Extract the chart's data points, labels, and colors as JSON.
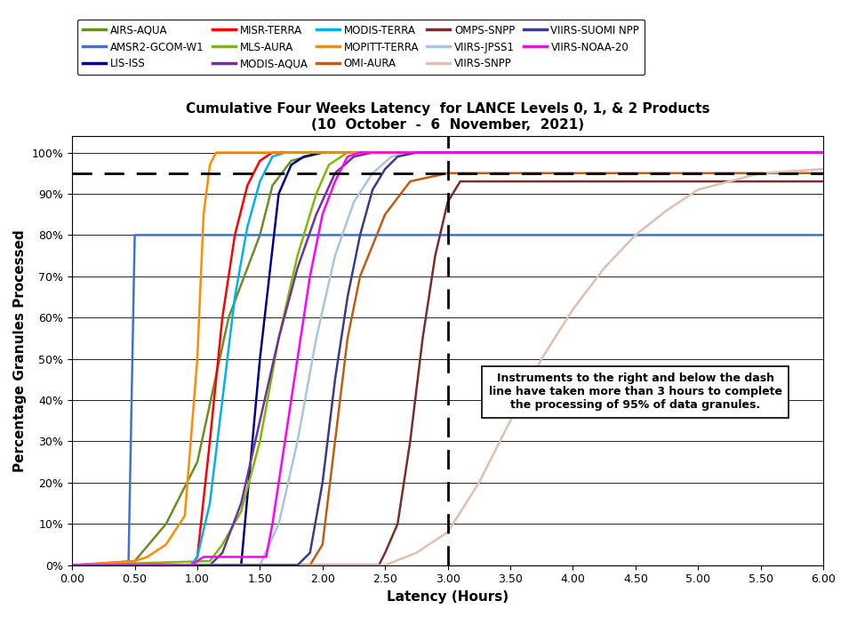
{
  "title_line1": "Cumulative Four Weeks Latency  for LANCE Levels 0, 1, & 2 Products",
  "title_line2": "(10  October  -  6  November,  2021)",
  "xlabel": "Latency (Hours)",
  "ylabel": "Percentage Granules Processed",
  "xlim": [
    0.0,
    6.0
  ],
  "ylim": [
    0.0,
    1.04
  ],
  "annotation_text": "Instruments to the right and below the dash\nline have taken more than 3 hours to complete\nthe processing of 95% of data granules.",
  "series": {
    "AIRS-AQUA": {
      "color": "#6B8E23",
      "points": [
        [
          0.0,
          0.0
        ],
        [
          0.5,
          0.01
        ],
        [
          0.75,
          0.1
        ],
        [
          1.0,
          0.25
        ],
        [
          1.25,
          0.6
        ],
        [
          1.5,
          0.8
        ],
        [
          1.6,
          0.92
        ],
        [
          1.75,
          0.98
        ],
        [
          2.0,
          1.0
        ],
        [
          6.0,
          1.0
        ]
      ]
    },
    "AMSR2-GCOM-W1": {
      "color": "#4472C4",
      "points": [
        [
          0.0,
          0.0
        ],
        [
          0.45,
          0.0
        ],
        [
          0.5,
          0.8
        ],
        [
          6.0,
          0.8
        ]
      ]
    },
    "LIS-ISS": {
      "color": "#00008B",
      "points": [
        [
          0.0,
          0.0
        ],
        [
          1.35,
          0.0
        ],
        [
          1.5,
          0.5
        ],
        [
          1.65,
          0.9
        ],
        [
          1.75,
          0.97
        ],
        [
          1.85,
          0.99
        ],
        [
          2.0,
          1.0
        ],
        [
          6.0,
          1.0
        ]
      ]
    },
    "MISR-TERRA": {
      "color": "#FF0000",
      "points": [
        [
          0.0,
          0.0
        ],
        [
          0.95,
          0.0
        ],
        [
          1.0,
          0.02
        ],
        [
          1.1,
          0.3
        ],
        [
          1.2,
          0.6
        ],
        [
          1.3,
          0.8
        ],
        [
          1.4,
          0.92
        ],
        [
          1.5,
          0.98
        ],
        [
          1.6,
          1.0
        ],
        [
          6.0,
          1.0
        ]
      ]
    },
    "MLS-AURA": {
      "color": "#7CBB00",
      "points": [
        [
          0.0,
          0.0
        ],
        [
          1.1,
          0.01
        ],
        [
          1.2,
          0.05
        ],
        [
          1.35,
          0.13
        ],
        [
          1.5,
          0.3
        ],
        [
          1.65,
          0.55
        ],
        [
          1.8,
          0.75
        ],
        [
          1.95,
          0.9
        ],
        [
          2.05,
          0.97
        ],
        [
          2.2,
          1.0
        ],
        [
          6.0,
          1.0
        ]
      ]
    },
    "MODIS-AQUA": {
      "color": "#7030A0",
      "points": [
        [
          0.0,
          0.0
        ],
        [
          1.1,
          0.0
        ],
        [
          1.2,
          0.03
        ],
        [
          1.35,
          0.15
        ],
        [
          1.5,
          0.35
        ],
        [
          1.65,
          0.55
        ],
        [
          1.8,
          0.72
        ],
        [
          1.95,
          0.85
        ],
        [
          2.1,
          0.95
        ],
        [
          2.25,
          0.99
        ],
        [
          2.4,
          1.0
        ],
        [
          6.0,
          1.0
        ]
      ]
    },
    "MODIS-TERRA": {
      "color": "#00B0F0",
      "points": [
        [
          0.0,
          0.0
        ],
        [
          0.95,
          0.0
        ],
        [
          1.0,
          0.02
        ],
        [
          1.1,
          0.15
        ],
        [
          1.2,
          0.4
        ],
        [
          1.3,
          0.65
        ],
        [
          1.4,
          0.82
        ],
        [
          1.5,
          0.93
        ],
        [
          1.6,
          0.99
        ],
        [
          1.7,
          1.0
        ],
        [
          6.0,
          1.0
        ]
      ]
    },
    "MOPITT-TERRA": {
      "color": "#FF8C00",
      "points": [
        [
          0.0,
          0.0
        ],
        [
          0.5,
          0.01
        ],
        [
          0.6,
          0.02
        ],
        [
          0.75,
          0.05
        ],
        [
          0.9,
          0.12
        ],
        [
          1.0,
          0.5
        ],
        [
          1.05,
          0.85
        ],
        [
          1.1,
          0.97
        ],
        [
          1.15,
          1.0
        ],
        [
          6.0,
          1.0
        ]
      ]
    },
    "OMI-AURA": {
      "color": "#C55A11",
      "points": [
        [
          0.0,
          0.0
        ],
        [
          1.9,
          0.0
        ],
        [
          2.0,
          0.05
        ],
        [
          2.1,
          0.3
        ],
        [
          2.2,
          0.55
        ],
        [
          2.3,
          0.7
        ],
        [
          2.5,
          0.85
        ],
        [
          2.7,
          0.93
        ],
        [
          3.0,
          0.95
        ],
        [
          6.0,
          0.95
        ]
      ]
    },
    "OMPS-SNPP": {
      "color": "#7B2C2C",
      "points": [
        [
          0.0,
          0.0
        ],
        [
          2.45,
          0.0
        ],
        [
          2.5,
          0.03
        ],
        [
          2.6,
          0.1
        ],
        [
          2.7,
          0.3
        ],
        [
          2.8,
          0.55
        ],
        [
          2.9,
          0.75
        ],
        [
          3.0,
          0.88
        ],
        [
          3.1,
          0.93
        ],
        [
          6.0,
          0.93
        ]
      ]
    },
    "VIIRS-JPSS1": {
      "color": "#A9C4E0",
      "points": [
        [
          0.0,
          0.0
        ],
        [
          1.5,
          0.0
        ],
        [
          1.65,
          0.1
        ],
        [
          1.8,
          0.3
        ],
        [
          1.95,
          0.55
        ],
        [
          2.1,
          0.75
        ],
        [
          2.25,
          0.88
        ],
        [
          2.4,
          0.95
        ],
        [
          2.55,
          0.99
        ],
        [
          2.7,
          1.0
        ],
        [
          6.0,
          1.0
        ]
      ]
    },
    "VIIRS-SNPP": {
      "color": "#DEBFB0",
      "points": [
        [
          0.0,
          0.0
        ],
        [
          2.5,
          0.0
        ],
        [
          2.75,
          0.03
        ],
        [
          3.0,
          0.08
        ],
        [
          3.25,
          0.2
        ],
        [
          3.5,
          0.35
        ],
        [
          3.75,
          0.5
        ],
        [
          4.0,
          0.62
        ],
        [
          4.25,
          0.72
        ],
        [
          4.5,
          0.8
        ],
        [
          4.75,
          0.86
        ],
        [
          5.0,
          0.91
        ],
        [
          5.5,
          0.95
        ],
        [
          6.0,
          0.96
        ]
      ]
    },
    "VIIRS-SUOMI NPP": {
      "color": "#3B3B8B",
      "points": [
        [
          0.0,
          0.0
        ],
        [
          1.8,
          0.0
        ],
        [
          1.9,
          0.03
        ],
        [
          2.0,
          0.2
        ],
        [
          2.1,
          0.45
        ],
        [
          2.2,
          0.65
        ],
        [
          2.3,
          0.8
        ],
        [
          2.4,
          0.91
        ],
        [
          2.5,
          0.96
        ],
        [
          2.6,
          0.99
        ],
        [
          2.75,
          1.0
        ],
        [
          6.0,
          1.0
        ]
      ]
    },
    "VIIRS-NOAA-20": {
      "color": "#FF00FF",
      "points": [
        [
          0.0,
          0.0
        ],
        [
          0.95,
          0.0
        ],
        [
          1.0,
          0.01
        ],
        [
          1.05,
          0.02
        ],
        [
          1.55,
          0.02
        ],
        [
          1.6,
          0.1
        ],
        [
          1.75,
          0.4
        ],
        [
          1.9,
          0.7
        ],
        [
          2.0,
          0.85
        ],
        [
          2.1,
          0.93
        ],
        [
          2.2,
          0.99
        ],
        [
          2.3,
          1.0
        ],
        [
          6.0,
          1.0
        ]
      ]
    }
  },
  "legend_order": [
    "AIRS-AQUA",
    "AMSR2-GCOM-W1",
    "LIS-ISS",
    "MISR-TERRA",
    "MLS-AURA",
    "MODIS-AQUA",
    "MODIS-TERRA",
    "MOPITT-TERRA",
    "OMI-AURA",
    "OMPS-SNPP",
    "VIIRS-JPSS1",
    "VIIRS-SNPP",
    "VIIRS-SUOMI NPP",
    "VIIRS-NOAA-20"
  ]
}
